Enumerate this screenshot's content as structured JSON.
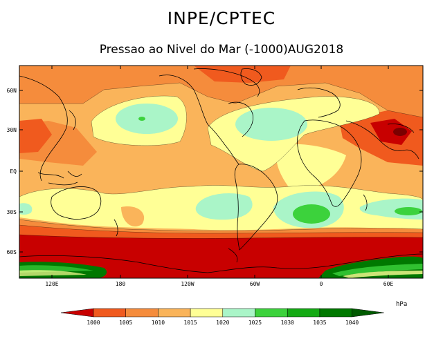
{
  "header": {
    "title": "INPE/CPTEC",
    "subtitle": "Pressao ao Nivel do Mar (-1000)AUG2018"
  },
  "map": {
    "lat_labels": [
      "60N",
      "30N",
      "EQ",
      "30S",
      "60S"
    ],
    "lon_labels": [
      "120E",
      "180",
      "120W",
      "60W",
      "0",
      "60E"
    ]
  },
  "legend": {
    "unit": "hPa",
    "levels": [
      "1000",
      "1005",
      "1010",
      "1015",
      "1020",
      "1025",
      "1030",
      "1035",
      "1040"
    ],
    "colors": [
      "#c80000",
      "#f05a1e",
      "#f58c3c",
      "#fab45a",
      "#ffff96",
      "#aaf5c8",
      "#3cd23c",
      "#14aa14",
      "#007800",
      "#005a00"
    ]
  }
}
